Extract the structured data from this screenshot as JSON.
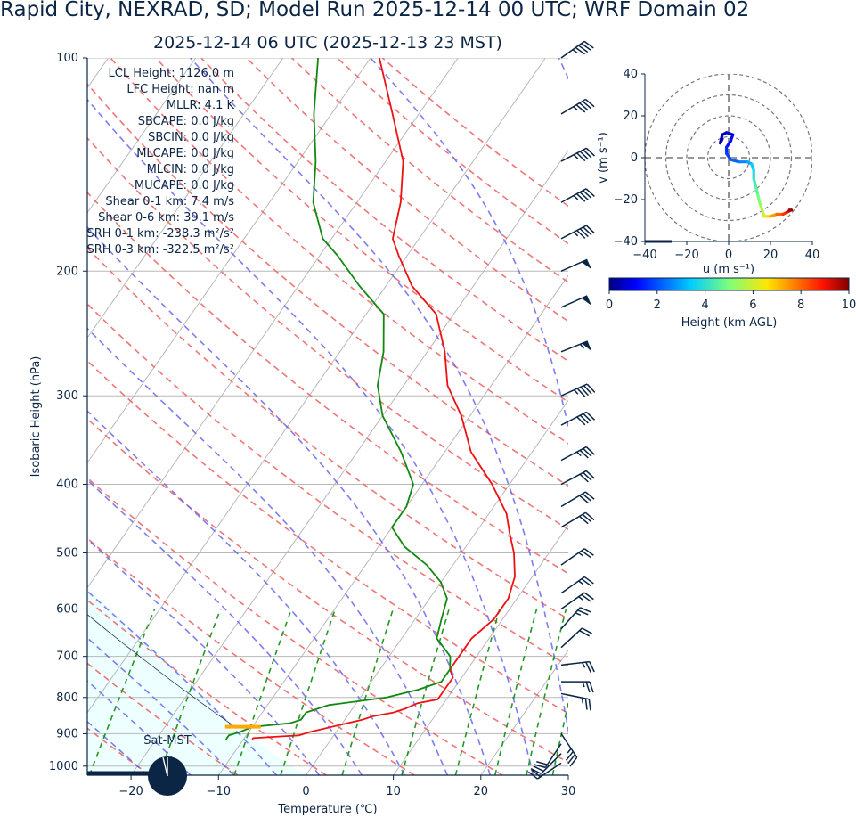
{
  "title": "Rapid City, NEXRAD, SD; Model Run 2025-12-14 00 UTC; WRF Domain 02",
  "subtitle": "2025-12-14 06 UTC  (2025-12-13 23 MST)",
  "station_label": "Sat-MST",
  "colors": {
    "temperature": "#ee1111",
    "dewpoint": "#118811",
    "parcel_fill": "#eeffff",
    "dry_adiabat": "#ee6666",
    "moist_adiabat": "#6666ee",
    "mixing_ratio": "#229922",
    "wind_barb": "#0b2545",
    "lcl_marker": "#ffaa00"
  },
  "stats": [
    {
      "label": "LCL Height:",
      "value": "1126.0 m"
    },
    {
      "label": "LFC Height:",
      "value": "nan m"
    },
    {
      "label": "MLLR:",
      "value": "4.1 K"
    },
    {
      "label": "SBCAPE:",
      "value": "0.0 J/kg"
    },
    {
      "label": "SBCIN:",
      "value": "0.0 J/kg"
    },
    {
      "label": "MLCAPE:",
      "value": "0.0 J/kg"
    },
    {
      "label": "MLCIN:",
      "value": "0.0 J/kg"
    },
    {
      "label": "MUCAPE:",
      "value": "0.0 J/kg"
    },
    {
      "label": "Shear 0-1 km:",
      "value": "7.4 m/s"
    },
    {
      "label": "Shear 0-6 km:",
      "value": "39.1 m/s"
    },
    {
      "label": "SRH 0-1 km:",
      "value": "-238.3 m²/s²"
    },
    {
      "label": "SRH 0-3 km:",
      "value": "-322.5 m²/s²"
    }
  ],
  "chart_data": [
    {
      "type": "line",
      "subtype": "skew-t log-p",
      "xlabel": "Temperature (℃)",
      "ylabel": "Isobaric Height (hPa)",
      "xlim": [
        -25,
        30
      ],
      "ylim": [
        1030,
        100
      ],
      "x_ticks": [
        -20,
        -10,
        0,
        10,
        20,
        30
      ],
      "x_tick_labels": [
        "−20",
        "−10",
        "0",
        "10",
        "20",
        "30"
      ],
      "y_ticks": [
        100,
        200,
        300,
        400,
        500,
        600,
        700,
        800,
        900,
        1000
      ],
      "y_tick_labels": [
        "100",
        "200",
        "300",
        "400",
        "500",
        "600",
        "700",
        "800",
        "900",
        "1000"
      ],
      "grid": true,
      "series": [
        {
          "kind": "temperature",
          "points": [
            [
              917,
              -9
            ],
            [
              913,
              -9
            ],
            [
              908,
              -6
            ],
            [
              905,
              -4
            ],
            [
              895,
              -3
            ],
            [
              860,
              2
            ],
            [
              850,
              3
            ],
            [
              840,
              5
            ],
            [
              830,
              6
            ],
            [
              815,
              7
            ],
            [
              805,
              9
            ],
            [
              795,
              9
            ],
            [
              780,
              9
            ],
            [
              770,
              9
            ],
            [
              750,
              9
            ],
            [
              730,
              8
            ],
            [
              700,
              8
            ],
            [
              660,
              8
            ],
            [
              620,
              9
            ],
            [
              580,
              9
            ],
            [
              540,
              8
            ],
            [
              500,
              6
            ],
            [
              470,
              4
            ],
            [
              440,
              2
            ],
            [
              400,
              -2
            ],
            [
              360,
              -7
            ],
            [
              320,
              -11
            ],
            [
              290,
              -15
            ],
            [
              260,
              -18
            ],
            [
              230,
              -22
            ],
            [
              210,
              -27
            ],
            [
              190,
              -31
            ],
            [
              180,
              -33
            ],
            [
              160,
              -35
            ],
            [
              140,
              -38
            ],
            [
              120,
              -43
            ],
            [
              100,
              -49
            ]
          ]
        },
        {
          "kind": "dewpoint",
          "points": [
            [
              917,
              -12
            ],
            [
              905,
              -12
            ],
            [
              895,
              -11
            ],
            [
              880,
              -10
            ],
            [
              870,
              -6
            ],
            [
              860,
              -5
            ],
            [
              840,
              -5
            ],
            [
              820,
              -3
            ],
            [
              800,
              3
            ],
            [
              780,
              6
            ],
            [
              760,
              8
            ],
            [
              730,
              8
            ],
            [
              700,
              7
            ],
            [
              660,
              4
            ],
            [
              620,
              3
            ],
            [
              580,
              2
            ],
            [
              550,
              0
            ],
            [
              520,
              -3
            ],
            [
              490,
              -7
            ],
            [
              460,
              -10
            ],
            [
              430,
              -10
            ],
            [
              400,
              -11
            ],
            [
              360,
              -15
            ],
            [
              320,
              -20
            ],
            [
              290,
              -23
            ],
            [
              260,
              -25
            ],
            [
              230,
              -28
            ],
            [
              210,
              -33
            ],
            [
              190,
              -38
            ],
            [
              180,
              -41
            ],
            [
              160,
              -45
            ],
            [
              140,
              -48
            ],
            [
              120,
              -52
            ],
            [
              100,
              -56
            ]
          ]
        }
      ],
      "wind_profile": [
        {
          "p": 100,
          "u": -35,
          "v": -25
        },
        {
          "p": 120,
          "u": -40,
          "v": -24
        },
        {
          "p": 140,
          "u": -42,
          "v": -22
        },
        {
          "p": 160,
          "u": -40,
          "v": -22
        },
        {
          "p": 180,
          "u": -42,
          "v": -22
        },
        {
          "p": 200,
          "u": -45,
          "v": -20
        },
        {
          "p": 225,
          "u": -45,
          "v": -20
        },
        {
          "p": 260,
          "u": -50,
          "v": -20
        },
        {
          "p": 300,
          "u": -40,
          "v": -18
        },
        {
          "p": 330,
          "u": -35,
          "v": -18
        },
        {
          "p": 370,
          "u": -30,
          "v": -16
        },
        {
          "p": 400,
          "u": -28,
          "v": -15
        },
        {
          "p": 430,
          "u": -25,
          "v": -15
        },
        {
          "p": 460,
          "u": -25,
          "v": -15
        },
        {
          "p": 520,
          "u": -20,
          "v": -14
        },
        {
          "p": 570,
          "u": -20,
          "v": -14
        },
        {
          "p": 600,
          "u": -20,
          "v": -14
        },
        {
          "p": 640,
          "u": -16,
          "v": -18
        },
        {
          "p": 680,
          "u": -13,
          "v": -12
        },
        {
          "p": 720,
          "u": -25,
          "v": -3
        },
        {
          "p": 760,
          "u": -25,
          "v": 0
        },
        {
          "p": 790,
          "u": -25,
          "v": 5
        },
        {
          "p": 900,
          "u": -20,
          "v": 30
        },
        {
          "p": 930,
          "u": 10,
          "v": 15
        },
        {
          "p": 960,
          "u": 15,
          "v": 15
        },
        {
          "p": 990,
          "u": 18,
          "v": 12
        }
      ]
    },
    {
      "type": "line",
      "subtype": "hodograph",
      "xlabel": "u (m s⁻¹)",
      "ylabel": "v (m s⁻¹)",
      "xlim": [
        -40,
        40
      ],
      "ylim": [
        -40,
        40
      ],
      "x_ticks": [
        -40,
        -20,
        0,
        20,
        40
      ],
      "x_tick_labels": [
        "−40",
        "−20",
        "0",
        "20",
        "40"
      ],
      "y_ticks": [
        -40,
        -20,
        0,
        20,
        40
      ],
      "y_tick_labels": [
        "−40",
        "−20",
        "0",
        "20",
        "40"
      ],
      "rings": [
        10,
        20,
        30,
        40
      ],
      "colorbar": {
        "label": "Height (km AGL)",
        "min": 0,
        "max": 10,
        "ticks": [
          0,
          2,
          4,
          6,
          8,
          10
        ],
        "colormap": "jet"
      },
      "points": [
        {
          "h": 0.0,
          "u": -3,
          "v": 9
        },
        {
          "h": 0.2,
          "u": -4,
          "v": 7
        },
        {
          "h": 0.4,
          "u": -3,
          "v": 11
        },
        {
          "h": 0.6,
          "u": -1,
          "v": 12
        },
        {
          "h": 0.8,
          "u": 2,
          "v": 11
        },
        {
          "h": 1.0,
          "u": 1,
          "v": 8
        },
        {
          "h": 1.2,
          "u": -1,
          "v": 5
        },
        {
          "h": 1.5,
          "u": -1,
          "v": 2
        },
        {
          "h": 1.8,
          "u": 1,
          "v": -1
        },
        {
          "h": 2.2,
          "u": 5,
          "v": -2
        },
        {
          "h": 2.6,
          "u": 9,
          "v": -2
        },
        {
          "h": 3.0,
          "u": 11,
          "v": -3
        },
        {
          "h": 3.4,
          "u": 12,
          "v": -6
        },
        {
          "h": 3.8,
          "u": 12,
          "v": -10
        },
        {
          "h": 4.2,
          "u": 13,
          "v": -14
        },
        {
          "h": 4.6,
          "u": 14,
          "v": -18
        },
        {
          "h": 5.0,
          "u": 15,
          "v": -22
        },
        {
          "h": 5.4,
          "u": 16,
          "v": -25
        },
        {
          "h": 5.8,
          "u": 17,
          "v": -28
        },
        {
          "h": 6.2,
          "u": 18,
          "v": -28
        },
        {
          "h": 6.8,
          "u": 20,
          "v": -28
        },
        {
          "h": 7.4,
          "u": 23,
          "v": -27
        },
        {
          "h": 8.0,
          "u": 26,
          "v": -27
        },
        {
          "h": 8.6,
          "u": 28,
          "v": -26
        },
        {
          "h": 9.2,
          "u": 30,
          "v": -25
        },
        {
          "h": 9.8,
          "u": 29,
          "v": -25
        }
      ]
    }
  ]
}
